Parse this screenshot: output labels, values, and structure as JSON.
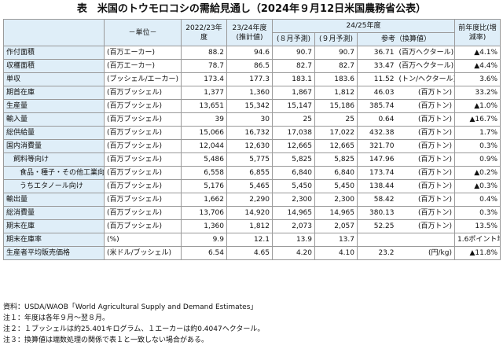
{
  "title": "表　米国のトウモロコシの需給見通し（2024年９月12日米国農務省公表）",
  "headers": {
    "unit": "－単位－",
    "y2022": "2022/23年度",
    "y2023": "23/24年度(推計値)",
    "y2024": "24/25年度",
    "aug": "(８月予測)",
    "sep": "(９月予測)",
    "ref": "参考（換算値）",
    "yoy": "前年度比(増減率)"
  },
  "rows": [
    {
      "label": "作付面積",
      "unit": "(百万エーカー)",
      "v2022": "88.2",
      "v2023": "94.6",
      "aug": "90.7",
      "sep": "90.7",
      "conv": "36.71",
      "conv_unit": "(百万ヘクタール)",
      "yoy": "▲4.1%"
    },
    {
      "label": "収穫面積",
      "unit": "(百万エーカー)",
      "v2022": "78.7",
      "v2023": "86.5",
      "aug": "82.7",
      "sep": "82.7",
      "conv": "33.47",
      "conv_unit": "(百万ヘクタール)",
      "yoy": "▲4.4%"
    },
    {
      "label": "単収",
      "unit": "(ブッシェル/エーカー)",
      "v2022": "173.4",
      "v2023": "177.3",
      "aug": "183.1",
      "sep": "183.6",
      "conv": "11.52",
      "conv_unit": "(トン/ヘクタール)",
      "yoy": "3.6%"
    },
    {
      "label": "期首在庫",
      "unit": "(百万ブッシェル)",
      "v2022": "1,377",
      "v2023": "1,360",
      "aug": "1,867",
      "sep": "1,812",
      "conv": "46.03",
      "conv_unit": "(百万トン)",
      "yoy": "33.2%"
    },
    {
      "label": "生産量",
      "unit": "(百万ブッシェル)",
      "v2022": "13,651",
      "v2023": "15,342",
      "aug": "15,147",
      "sep": "15,186",
      "conv": "385.74",
      "conv_unit": "(百万トン)",
      "yoy": "▲1.0%"
    },
    {
      "label": "輸入量",
      "unit": "(百万ブッシェル)",
      "v2022": "39",
      "v2023": "30",
      "aug": "25",
      "sep": "25",
      "conv": "0.64",
      "conv_unit": "(百万トン)",
      "yoy": "▲16.7%"
    },
    {
      "label": "総供給量",
      "unit": "(百万ブッシェル)",
      "v2022": "15,066",
      "v2023": "16,732",
      "aug": "17,038",
      "sep": "17,022",
      "conv": "432.38",
      "conv_unit": "(百万トン)",
      "yoy": "1.7%"
    },
    {
      "label": "国内消費量",
      "unit": "(百万ブッシェル)",
      "v2022": "12,044",
      "v2023": "12,630",
      "aug": "12,665",
      "sep": "12,665",
      "conv": "321.70",
      "conv_unit": "(百万トン)",
      "yoy": "0.3%"
    },
    {
      "label": "飼料等向け",
      "unit": "(百万ブッシェル)",
      "v2022": "5,486",
      "v2023": "5,775",
      "aug": "5,825",
      "sep": "5,825",
      "conv": "147.96",
      "conv_unit": "(百万トン)",
      "yoy": "0.9%"
    },
    {
      "label": "食品・種子・その他工業向け",
      "unit": "(百万ブッシェル)",
      "v2022": "6,558",
      "v2023": "6,855",
      "aug": "6,840",
      "sep": "6,840",
      "conv": "173.74",
      "conv_unit": "(百万トン)",
      "yoy": "▲0.2%"
    },
    {
      "label": "うちエタノール向け",
      "unit": "(百万ブッシェル)",
      "v2022": "5,176",
      "v2023": "5,465",
      "aug": "5,450",
      "sep": "5,450",
      "conv": "138.44",
      "conv_unit": "(百万トン)",
      "yoy": "▲0.3%"
    },
    {
      "label": "輸出量",
      "unit": "(百万ブッシェル)",
      "v2022": "1,662",
      "v2023": "2,290",
      "aug": "2,300",
      "sep": "2,300",
      "conv": "58.42",
      "conv_unit": "(百万トン)",
      "yoy": "0.4%"
    },
    {
      "label": "総消費量",
      "unit": "(百万ブッシェル)",
      "v2022": "13,706",
      "v2023": "14,920",
      "aug": "14,965",
      "sep": "14,965",
      "conv": "380.13",
      "conv_unit": "(百万トン)",
      "yoy": "0.3%"
    },
    {
      "label": "期末在庫",
      "unit": "(百万ブッシェル)",
      "v2022": "1,360",
      "v2023": "1,812",
      "aug": "2,073",
      "sep": "2,057",
      "conv": "52.25",
      "conv_unit": "(百万トン)",
      "yoy": "13.5%"
    },
    {
      "label": "期末在庫率",
      "unit": "(%)",
      "v2022": "9.9",
      "v2023": "12.1",
      "aug": "13.9",
      "sep": "13.7",
      "conv": "",
      "conv_unit": "",
      "yoy": "1.6ポイント増"
    },
    {
      "label": "生産者平均販売価格",
      "unit": "(米ドル/ブッシェル)",
      "v2022": "6.54",
      "v2023": "4.65",
      "aug": "4.20",
      "sep": "4.10",
      "conv": "23.2",
      "conv_unit": "(円/kg)",
      "yoy": "▲11.8%"
    }
  ],
  "notes": [
    "資料：USDA/WAOB「World Agricultural Supply and Demand Estimates」",
    "注１：年度は各年９月～翌８月。",
    "注２：１ブッシェルは約25.401キログラム、１エーカーは約0.4047ヘクタール。",
    "注３：換算値は端数処理の関係で表１と一致しない場合がある。"
  ]
}
